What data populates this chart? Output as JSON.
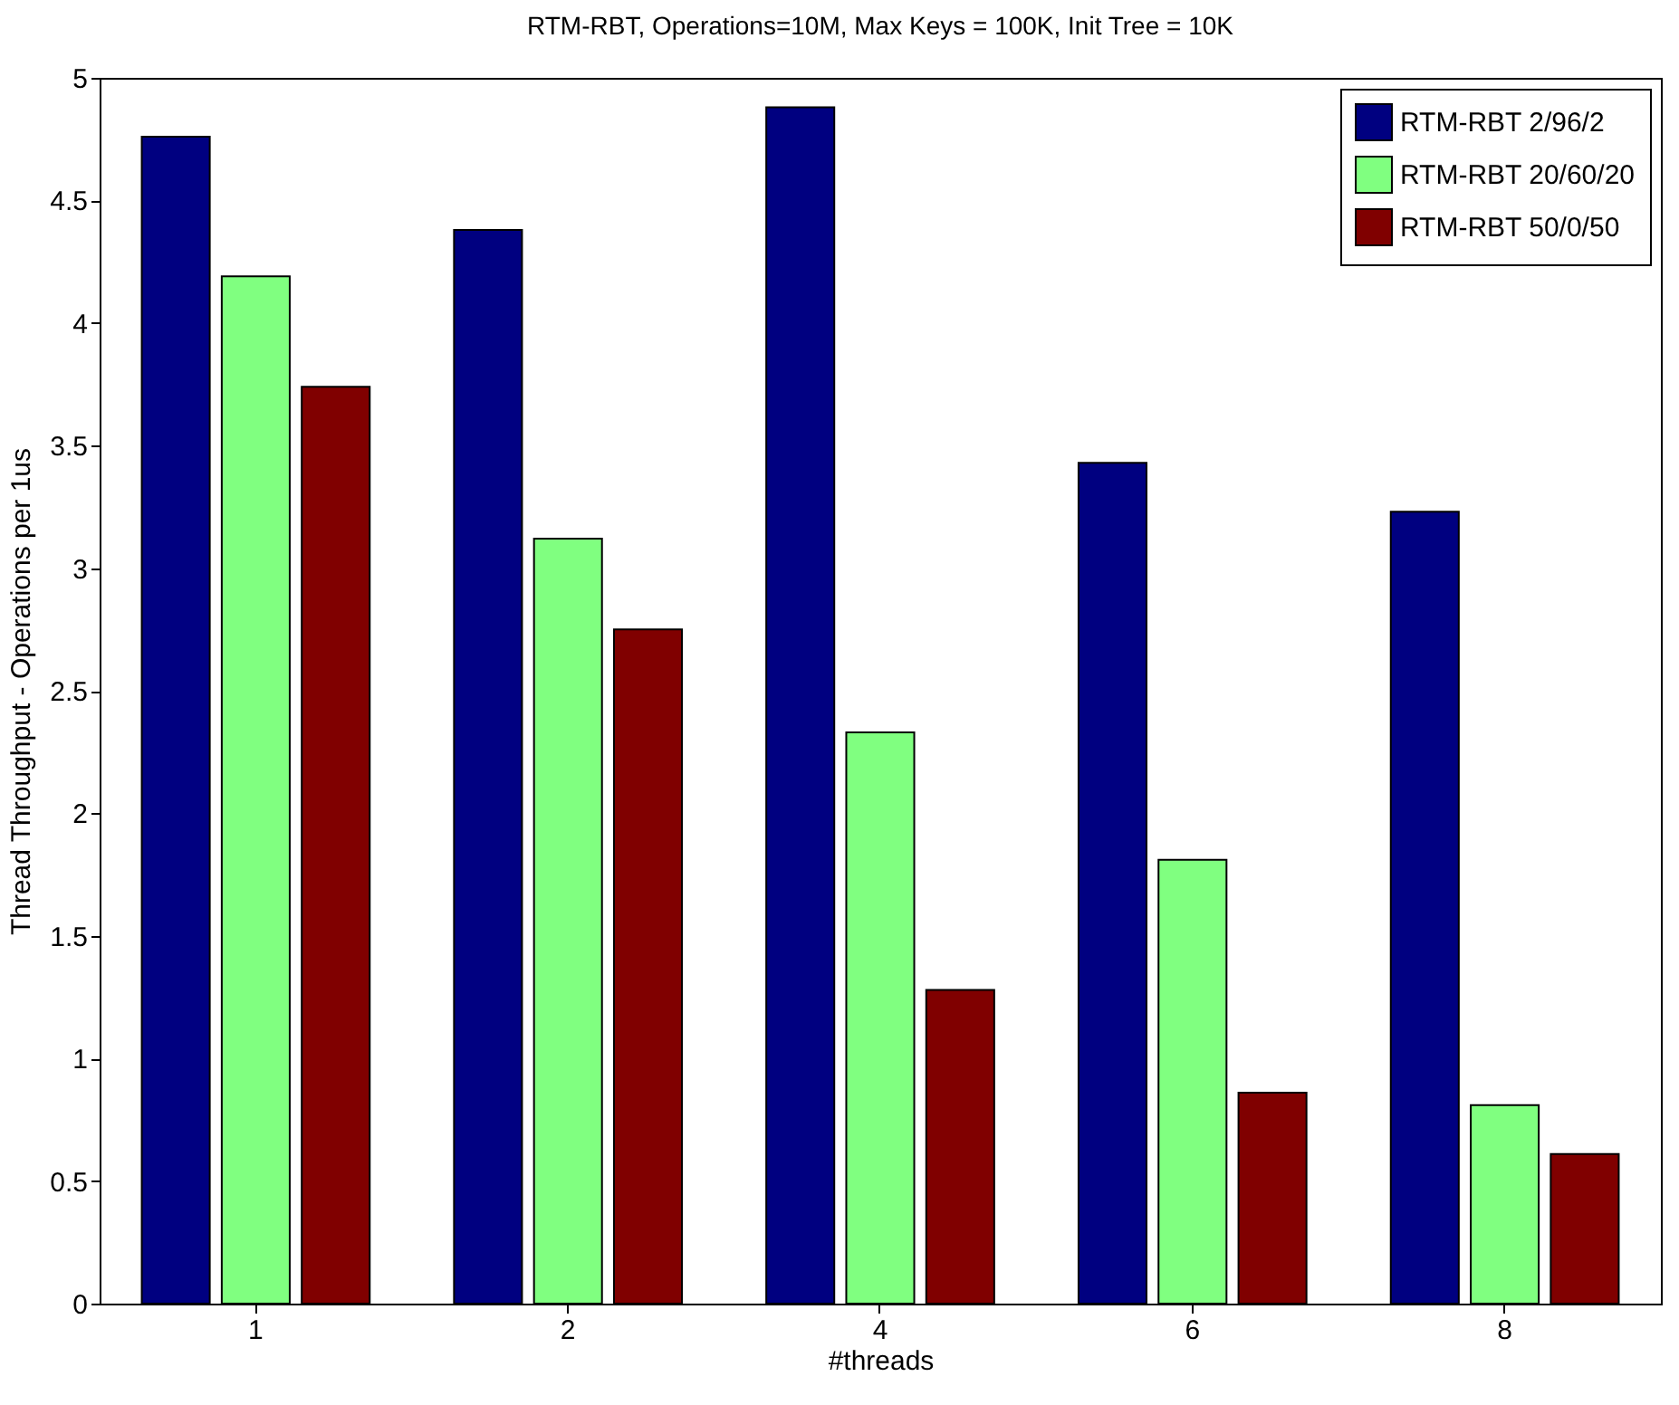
{
  "chart_data": {
    "type": "bar",
    "title": "RTM-RBT, Operations=10M, Max Keys = 100K, Init Tree = 10K",
    "xlabel": "#threads",
    "ylabel": "Thread Throughput - Operations per 1us",
    "categories": [
      "1",
      "2",
      "4",
      "6",
      "8"
    ],
    "series": [
      {
        "name": "RTM-RBT 2/96/2",
        "color": "#000080",
        "values": [
          4.76,
          4.38,
          4.88,
          3.43,
          3.23
        ]
      },
      {
        "name": "RTM-RBT 20/60/20",
        "color": "#80ff80",
        "values": [
          4.19,
          3.12,
          2.33,
          1.81,
          0.81
        ]
      },
      {
        "name": "RTM-RBT 50/0/50",
        "color": "#800000",
        "values": [
          3.74,
          2.75,
          1.28,
          0.86,
          0.61
        ]
      }
    ],
    "ylim": [
      0,
      5
    ],
    "yticks": [
      0,
      0.5,
      1,
      1.5,
      2,
      2.5,
      3,
      3.5,
      4,
      4.5,
      5
    ],
    "grid": false,
    "legend": "top right"
  }
}
